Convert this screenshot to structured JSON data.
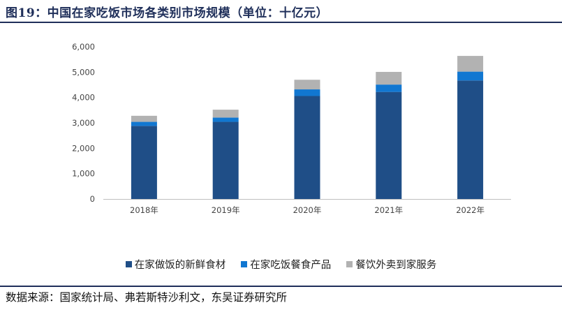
{
  "title": "图19：中国在家吃饭市场各类别市场规模（单位：十亿元）",
  "source": "数据来源：国家统计局、弗若斯特沙利文，东吴证券研究所",
  "chart_data": {
    "type": "bar",
    "stacked": true,
    "categories": [
      "2018年",
      "2019年",
      "2020年",
      "2021年",
      "2022年"
    ],
    "series": [
      {
        "name": "在家做饭的新鲜食材",
        "color": "#1f4e87",
        "values": [
          2880,
          3040,
          4060,
          4220,
          4670
        ]
      },
      {
        "name": "在家吃饭餐食产品",
        "color": "#1177d1",
        "values": [
          160,
          170,
          260,
          290,
          350
        ]
      },
      {
        "name": "餐饮外卖到家服务",
        "color": "#b2b2b2",
        "values": [
          240,
          310,
          380,
          500,
          620
        ]
      }
    ],
    "yticks": [
      "0",
      "1,000",
      "2,000",
      "3,000",
      "4,000",
      "5,000",
      "6,000"
    ],
    "ylim": [
      0,
      6000
    ],
    "grid": false,
    "legend_position": "bottom"
  }
}
